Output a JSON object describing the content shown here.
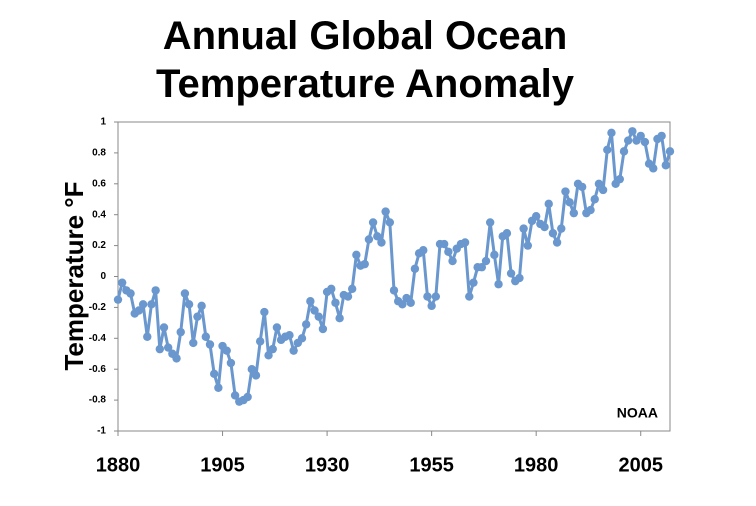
{
  "chart_data": {
    "type": "line",
    "title": "Annual Global Ocean Temperature Anomaly",
    "ylabel": "Temperature °F",
    "annotation": "NOAA",
    "x": [
      1880,
      1881,
      1882,
      1883,
      1884,
      1885,
      1886,
      1887,
      1888,
      1889,
      1890,
      1891,
      1892,
      1893,
      1894,
      1895,
      1896,
      1897,
      1898,
      1899,
      1900,
      1901,
      1902,
      1903,
      1904,
      1905,
      1906,
      1907,
      1908,
      1909,
      1910,
      1911,
      1912,
      1913,
      1914,
      1915,
      1916,
      1917,
      1918,
      1919,
      1920,
      1921,
      1922,
      1923,
      1924,
      1925,
      1926,
      1927,
      1928,
      1929,
      1930,
      1931,
      1932,
      1933,
      1934,
      1935,
      1936,
      1937,
      1938,
      1939,
      1940,
      1941,
      1942,
      1943,
      1944,
      1945,
      1946,
      1947,
      1948,
      1949,
      1950,
      1951,
      1952,
      1953,
      1954,
      1955,
      1956,
      1957,
      1958,
      1959,
      1960,
      1961,
      1962,
      1963,
      1964,
      1965,
      1966,
      1967,
      1968,
      1969,
      1970,
      1971,
      1972,
      1973,
      1974,
      1975,
      1976,
      1977,
      1978,
      1979,
      1980,
      1981,
      1982,
      1983,
      1984,
      1985,
      1986,
      1987,
      1988,
      1989,
      1990,
      1991,
      1992,
      1993,
      1994,
      1995,
      1996,
      1997,
      1998,
      1999,
      2000,
      2001,
      2002,
      2003,
      2004,
      2005,
      2006,
      2007,
      2008,
      2009,
      2010,
      2011,
      2012
    ],
    "series": [
      {
        "color": "#6a97cd",
        "values": [
          -0.15,
          -0.04,
          -0.09,
          -0.11,
          -0.24,
          -0.22,
          -0.18,
          -0.39,
          -0.18,
          -0.09,
          -0.47,
          -0.33,
          -0.46,
          -0.5,
          -0.53,
          -0.36,
          -0.11,
          -0.18,
          -0.43,
          -0.26,
          -0.19,
          -0.39,
          -0.44,
          -0.63,
          -0.72,
          -0.45,
          -0.48,
          -0.56,
          -0.77,
          -0.81,
          -0.8,
          -0.78,
          -0.6,
          -0.64,
          -0.42,
          -0.23,
          -0.51,
          -0.47,
          -0.33,
          -0.41,
          -0.39,
          -0.38,
          -0.48,
          -0.43,
          -0.4,
          -0.31,
          -0.16,
          -0.22,
          -0.26,
          -0.34,
          -0.1,
          -0.08,
          -0.17,
          -0.27,
          -0.12,
          -0.13,
          -0.08,
          0.14,
          0.07,
          0.08,
          0.24,
          0.35,
          0.26,
          0.22,
          0.42,
          0.35,
          -0.09,
          -0.16,
          -0.18,
          -0.14,
          -0.17,
          0.05,
          0.15,
          0.17,
          -0.13,
          -0.19,
          -0.13,
          0.21,
          0.21,
          0.16,
          0.1,
          0.18,
          0.21,
          0.22,
          -0.13,
          -0.04,
          0.06,
          0.06,
          0.1,
          0.35,
          0.14,
          -0.05,
          0.26,
          0.28,
          0.02,
          -0.03,
          -0.01,
          0.31,
          0.2,
          0.36,
          0.39,
          0.34,
          0.32,
          0.47,
          0.28,
          0.22,
          0.31,
          0.55,
          0.48,
          0.41,
          0.6,
          0.58,
          0.41,
          0.43,
          0.5,
          0.6,
          0.56,
          0.82,
          0.93,
          0.6,
          0.63,
          0.81,
          0.88,
          0.94,
          0.88,
          0.91,
          0.87,
          0.73,
          0.7,
          0.89,
          0.91,
          0.72,
          0.81
        ]
      }
    ],
    "xlim": [
      1880,
      2012
    ],
    "xticks": [
      1880,
      1905,
      1930,
      1955,
      1980,
      2005
    ],
    "ylim": [
      -1,
      1
    ],
    "yticks": [
      -1,
      -0.8,
      -0.6,
      -0.4,
      -0.2,
      0,
      0.2,
      0.4,
      0.6,
      0.8,
      1
    ]
  }
}
